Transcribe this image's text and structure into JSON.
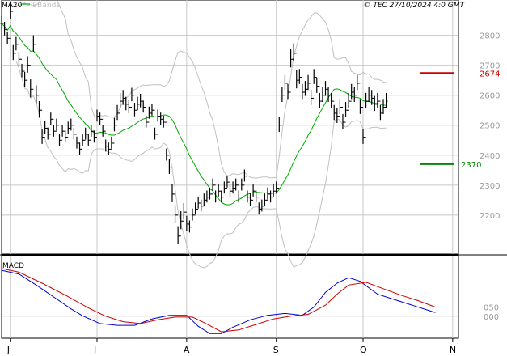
{
  "header": {
    "ma_label": "MA20",
    "bbands_label": "BBands",
    "copyright": "© TEC 27/10/2024 4:0 GMT"
  },
  "colors": {
    "ma": "#00aa00",
    "bands": "#c0c0c0",
    "price": "#000000",
    "grid": "#c8c8c8",
    "resistance": "#cc0000",
    "support": "#008800",
    "macd": "#0000cc",
    "signal": "#cc0000"
  },
  "chart_data": [
    {
      "type": "ohlc",
      "ylim": [
        2070,
        2880
      ],
      "y_ticks": [
        2200,
        2300,
        2400,
        2500,
        2600,
        2700,
        2800
      ],
      "y_tick_labels": [
        "2200",
        "2300",
        "2400",
        "2500",
        "2600",
        "2700",
        "2800"
      ],
      "x_month_labels": [
        {
          "label": "J",
          "day": 3
        },
        {
          "label": "J",
          "day": 33
        },
        {
          "label": "A",
          "day": 64
        },
        {
          "label": "S",
          "day": 95
        },
        {
          "label": "O",
          "day": 125
        },
        {
          "label": "N",
          "day": 156
        }
      ],
      "x_range": [
        0,
        158
      ],
      "levels": [
        {
          "name": "resistance",
          "value": 2674,
          "label": "2674"
        },
        {
          "name": "support",
          "value": 2370,
          "label": "2370"
        }
      ],
      "close": [
        2840,
        2820,
        2790,
        2880,
        2740,
        2770,
        2720,
        2680,
        2650,
        2700,
        2620,
        2770,
        2600,
        2550,
        2460,
        2490,
        2470,
        2520,
        2480,
        2500,
        2450,
        2480,
        2460,
        2490,
        2500,
        2470,
        2440,
        2420,
        2450,
        2470,
        2450,
        2480,
        2460,
        2530,
        2520,
        2480,
        2430,
        2420,
        2440,
        2500,
        2540,
        2580,
        2590,
        2570,
        2560,
        2600,
        2550,
        2570,
        2580,
        2560,
        2510,
        2540,
        2550,
        2470,
        2530,
        2520,
        2510,
        2400,
        2360,
        2270,
        2200,
        2130,
        2180,
        2210,
        2170,
        2160,
        2200,
        2220,
        2240,
        2230,
        2250,
        2260,
        2270,
        2300,
        2260,
        2280,
        2260,
        2290,
        2310,
        2280,
        2290,
        2300,
        2260,
        2300,
        2330,
        2260,
        2250,
        2280,
        2260,
        2220,
        2230,
        2250,
        2270,
        2260,
        2280,
        2290,
        2500,
        2600,
        2640,
        2610,
        2720,
        2740,
        2650,
        2660,
        2610,
        2620,
        2640,
        2590,
        2660,
        2630,
        2580,
        2600,
        2620,
        2600,
        2580,
        2540,
        2530,
        2560,
        2510,
        2550,
        2580,
        2610,
        2600,
        2640,
        2560,
        2460,
        2580,
        2600,
        2590,
        2570,
        2580,
        2540,
        2560,
        2580
      ],
      "range": [
        45,
        45,
        40,
        60,
        50,
        45,
        45,
        45,
        50,
        55,
        60,
        55,
        60,
        55,
        50,
        45,
        40,
        40,
        40,
        40,
        40,
        40,
        40,
        40,
        40,
        40,
        40,
        40,
        40,
        40,
        40,
        40,
        40,
        40,
        40,
        40,
        40,
        40,
        40,
        45,
        50,
        50,
        50,
        45,
        45,
        45,
        45,
        45,
        45,
        40,
        40,
        40,
        40,
        40,
        40,
        40,
        40,
        40,
        50,
        60,
        60,
        60,
        60,
        55,
        50,
        40,
        40,
        40,
        40,
        40,
        40,
        40,
        40,
        40,
        40,
        40,
        40,
        40,
        40,
        40,
        40,
        40,
        40,
        40,
        40,
        40,
        40,
        40,
        40,
        40,
        40,
        40,
        40,
        40,
        40,
        40,
        50,
        50,
        50,
        50,
        60,
        60,
        60,
        50,
        50,
        50,
        50,
        50,
        50,
        50,
        50,
        50,
        50,
        50,
        50,
        50,
        50,
        50,
        50,
        50,
        50,
        50,
        50,
        50,
        50,
        50,
        50,
        50,
        50,
        50,
        50,
        50,
        50,
        50
      ]
    },
    {
      "type": "line",
      "title": "MACD",
      "ylim": [
        -120,
        330
      ],
      "y_ticks": [
        0,
        50
      ],
      "y_tick_labels": [
        "000",
        "050"
      ],
      "x_range": [
        0,
        158
      ],
      "series": [
        {
          "points": [
            [
              0,
              250
            ],
            [
              6,
              230
            ],
            [
              12,
              170
            ],
            [
              18,
              105
            ],
            [
              24,
              40
            ],
            [
              28,
              2
            ],
            [
              34,
              -40
            ],
            [
              40,
              -50
            ],
            [
              46,
              -50
            ],
            [
              52,
              -15
            ],
            [
              58,
              5
            ],
            [
              64,
              5
            ],
            [
              68,
              -55
            ],
            [
              72,
              -95
            ],
            [
              76,
              -95
            ],
            [
              80,
              -60
            ],
            [
              86,
              -20
            ],
            [
              92,
              5
            ],
            [
              98,
              15
            ],
            [
              104,
              5
            ],
            [
              108,
              50
            ],
            [
              112,
              130
            ],
            [
              116,
              180
            ],
            [
              120,
              210
            ],
            [
              124,
              190
            ],
            [
              130,
              120
            ],
            [
              136,
              90
            ],
            [
              142,
              60
            ],
            [
              148,
              30
            ],
            [
              150,
              20
            ]
          ]
        },
        {
          "points": [
            [
              0,
              260
            ],
            [
              6,
              240
            ],
            [
              14,
              180
            ],
            [
              22,
              115
            ],
            [
              30,
              45
            ],
            [
              36,
              0
            ],
            [
              42,
              -30
            ],
            [
              48,
              -40
            ],
            [
              54,
              -20
            ],
            [
              60,
              -5
            ],
            [
              66,
              -5
            ],
            [
              70,
              -35
            ],
            [
              76,
              -85
            ],
            [
              82,
              -75
            ],
            [
              88,
              -45
            ],
            [
              94,
              -15
            ],
            [
              100,
              0
            ],
            [
              106,
              10
            ],
            [
              112,
              60
            ],
            [
              116,
              120
            ],
            [
              120,
              170
            ],
            [
              126,
              185
            ],
            [
              132,
              150
            ],
            [
              138,
              115
            ],
            [
              144,
              85
            ],
            [
              150,
              50
            ]
          ]
        }
      ]
    }
  ]
}
